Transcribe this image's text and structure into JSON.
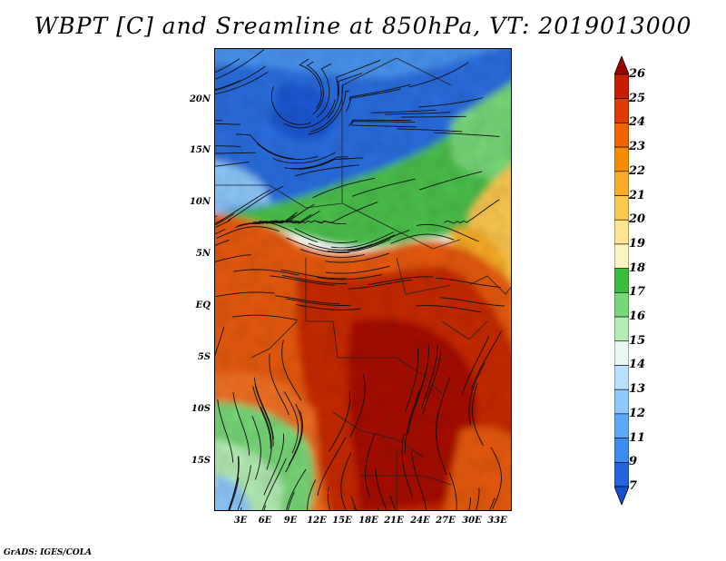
{
  "title": "WBPT [C] and Sreamline at 850hPa, VT: 2019013000",
  "credit": "GrADS: IGES/COLA",
  "map": {
    "variable": "wet-bulb potential temperature with streamlines",
    "lat_ticks": [
      "20N",
      "15N",
      "10N",
      "5N",
      "EQ",
      "5S",
      "10S",
      "15S"
    ],
    "lon_ticks": [
      "3E",
      "6E",
      "9E",
      "12E",
      "15E",
      "18E",
      "21E",
      "24E",
      "27E",
      "30E",
      "33E"
    ]
  },
  "colorbar": {
    "labels": [
      "26",
      "25",
      "24",
      "23",
      "22",
      "21",
      "20",
      "19",
      "18",
      "17",
      "16",
      "15",
      "14",
      "13",
      "12",
      "11",
      "9",
      "7"
    ],
    "colors": [
      "#a00000",
      "#c81e00",
      "#e03c00",
      "#f06400",
      "#f88c00",
      "#f8ac28",
      "#fcc850",
      "#fce490",
      "#fcf4c0",
      "#3cbc3c",
      "#78d878",
      "#b4ecb4",
      "#e8f8f4",
      "#b8e0fc",
      "#8cc8fc",
      "#5ca8f8",
      "#3c8cf0",
      "#2464e0",
      "#1450d0"
    ]
  }
}
